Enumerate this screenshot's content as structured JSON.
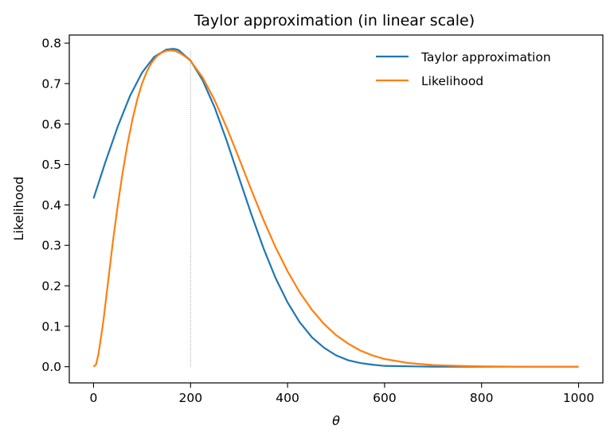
{
  "chart_data": {
    "type": "line",
    "title": "Taylor approximation (in linear scale)",
    "xlabel": "θ",
    "ylabel": "Likelihood",
    "xlim": [
      -50,
      1050
    ],
    "ylim": [
      -0.04,
      0.82
    ],
    "xticks": [
      0,
      200,
      400,
      600,
      800,
      1000
    ],
    "xtick_labels": [
      "0",
      "200",
      "400",
      "600",
      "800",
      "1000"
    ],
    "yticks": [
      0.0,
      0.1,
      0.2,
      0.3,
      0.4,
      0.5,
      0.6,
      0.7,
      0.8
    ],
    "ytick_labels": [
      "0.0",
      "0.1",
      "0.2",
      "0.3",
      "0.4",
      "0.5",
      "0.6",
      "0.7",
      "0.8"
    ],
    "grid": false,
    "legend_position": "top-right",
    "vline": {
      "x": 200,
      "y_from": 0.0,
      "y_to": 0.78,
      "style": "dotted",
      "color": "#808080"
    },
    "series": [
      {
        "name": "Taylor approximation",
        "color": "#1f77b4",
        "x": [
          0,
          25,
          50,
          75,
          100,
          125,
          150,
          165,
          175,
          200,
          225,
          250,
          275,
          300,
          325,
          350,
          375,
          400,
          425,
          450,
          475,
          500,
          525,
          550,
          575,
          600,
          650,
          700,
          750,
          800,
          900,
          1000
        ],
        "y": [
          0.416,
          0.508,
          0.594,
          0.669,
          0.727,
          0.766,
          0.784,
          0.786,
          0.783,
          0.757,
          0.708,
          0.64,
          0.557,
          0.467,
          0.378,
          0.294,
          0.22,
          0.159,
          0.11,
          0.073,
          0.047,
          0.028,
          0.016,
          0.009,
          0.005,
          0.002,
          0.001,
          0.0,
          0.0,
          0.0,
          0.0,
          0.0
        ]
      },
      {
        "name": "Likelihood",
        "color": "#ff7f0e",
        "x": [
          0,
          5,
          10,
          20,
          30,
          40,
          50,
          60,
          70,
          80,
          90,
          100,
          110,
          120,
          130,
          140,
          150,
          160,
          170,
          180,
          190,
          200,
          225,
          250,
          275,
          300,
          325,
          350,
          375,
          400,
          425,
          450,
          475,
          500,
          525,
          550,
          575,
          600,
          650,
          700,
          750,
          800,
          900,
          1000
        ],
        "y": [
          0.0,
          0.005,
          0.03,
          0.11,
          0.21,
          0.31,
          0.4,
          0.48,
          0.55,
          0.61,
          0.66,
          0.7,
          0.73,
          0.752,
          0.767,
          0.776,
          0.781,
          0.782,
          0.78,
          0.774,
          0.766,
          0.756,
          0.715,
          0.658,
          0.59,
          0.515,
          0.438,
          0.364,
          0.296,
          0.236,
          0.184,
          0.141,
          0.106,
          0.078,
          0.057,
          0.04,
          0.028,
          0.019,
          0.009,
          0.004,
          0.002,
          0.001,
          0.0,
          0.0
        ]
      }
    ]
  }
}
